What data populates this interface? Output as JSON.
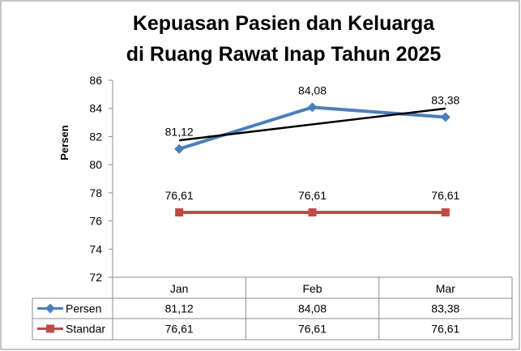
{
  "chart_data": {
    "type": "line",
    "title": "Kepuasan Pasien dan Keluarga",
    "subtitle": "di Ruang Rawat Inap Tahun 2025",
    "ylabel": "Persen",
    "xlabel": "",
    "ylim": [
      72,
      86
    ],
    "ytick_step": 2,
    "yticks": [
      "72",
      "74",
      "76",
      "78",
      "80",
      "82",
      "84",
      "86"
    ],
    "categories": [
      "Jan",
      "Feb",
      "Mar"
    ],
    "series": [
      {
        "name": "Persen",
        "values": [
          81.12,
          84.08,
          83.38
        ],
        "labels": [
          "81,12",
          "84,08",
          "83,38"
        ],
        "color": "#4a7ebb",
        "marker": "diamond"
      },
      {
        "name": "Standar",
        "values": [
          76.61,
          76.61,
          76.61
        ],
        "labels": [
          "76,61",
          "76,61",
          "76,61"
        ],
        "color": "#be4b48",
        "marker": "square"
      }
    ],
    "trendline": {
      "series": "Persen",
      "color": "#000000",
      "type": "linear"
    },
    "data_table": true,
    "grid": false,
    "legend": "in data table"
  }
}
